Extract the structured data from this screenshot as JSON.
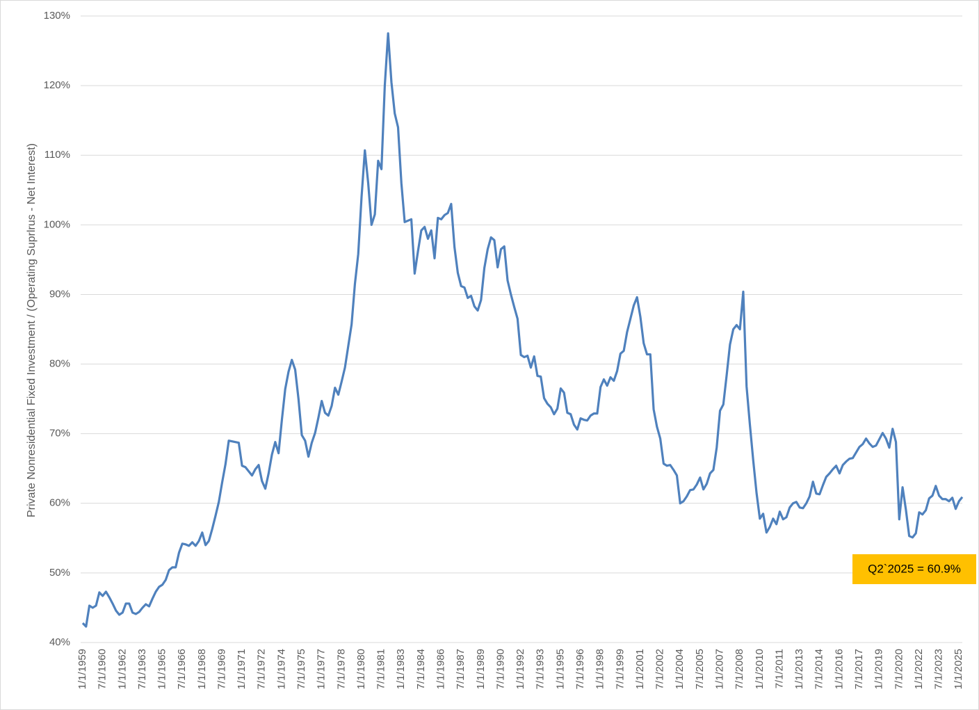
{
  "chart_data": {
    "type": "line",
    "y_label": "Private Nonresidential Fixed Investment / (Operating Suprlrus - Net Interest)",
    "annotation": "Q2`2025 = 60.9%",
    "annotation_color": "#ffc000",
    "grid": true,
    "ylim": [
      40,
      130
    ],
    "yticks": [
      {
        "value": 40,
        "label": "40%"
      },
      {
        "value": 50,
        "label": "50%"
      },
      {
        "value": 60,
        "label": "60%"
      },
      {
        "value": 70,
        "label": "70%"
      },
      {
        "value": 80,
        "label": "80%"
      },
      {
        "value": 90,
        "label": "90%"
      },
      {
        "value": 100,
        "label": "100%"
      },
      {
        "value": 110,
        "label": "110%"
      },
      {
        "value": 120,
        "label": "120%"
      },
      {
        "value": 130,
        "label": "130%"
      }
    ],
    "categories": [
      "1/1/1959",
      null,
      null,
      null,
      null,
      null,
      "7/1/1960",
      null,
      null,
      null,
      null,
      null,
      "1/1/1962",
      null,
      null,
      null,
      null,
      null,
      "7/1/1963",
      null,
      null,
      null,
      null,
      null,
      "1/1/1965",
      null,
      null,
      null,
      null,
      null,
      "7/1/1966",
      null,
      null,
      null,
      null,
      null,
      "1/1/1968",
      null,
      null,
      null,
      null,
      null,
      "7/1/1969",
      null,
      null,
      null,
      null,
      null,
      "1/1/1971",
      null,
      null,
      null,
      null,
      null,
      "7/1/1972",
      null,
      null,
      null,
      null,
      null,
      "1/1/1974",
      null,
      null,
      null,
      null,
      null,
      "7/1/1975",
      null,
      null,
      null,
      null,
      null,
      "1/1/1977",
      null,
      null,
      null,
      null,
      null,
      "7/1/1978",
      null,
      null,
      null,
      null,
      null,
      "1/1/1980",
      null,
      null,
      null,
      null,
      null,
      "7/1/1981",
      null,
      null,
      null,
      null,
      null,
      "1/1/1983",
      null,
      null,
      null,
      null,
      null,
      "7/1/1984",
      null,
      null,
      null,
      null,
      null,
      "1/1/1986",
      null,
      null,
      null,
      null,
      null,
      "7/1/1987",
      null,
      null,
      null,
      null,
      null,
      "1/1/1989",
      null,
      null,
      null,
      null,
      null,
      "7/1/1990",
      null,
      null,
      null,
      null,
      null,
      "1/1/1992",
      null,
      null,
      null,
      null,
      null,
      "7/1/1993",
      null,
      null,
      null,
      null,
      null,
      "1/1/1995",
      null,
      null,
      null,
      null,
      null,
      "7/1/1996",
      null,
      null,
      null,
      null,
      null,
      "1/1/1998",
      null,
      null,
      null,
      null,
      null,
      "7/1/1999",
      null,
      null,
      null,
      null,
      null,
      "1/1/2001",
      null,
      null,
      null,
      null,
      null,
      "7/1/2002",
      null,
      null,
      null,
      null,
      null,
      "1/1/2004",
      null,
      null,
      null,
      null,
      null,
      "7/1/2005",
      null,
      null,
      null,
      null,
      null,
      "1/1/2007",
      null,
      null,
      null,
      null,
      null,
      "7/1/2008",
      null,
      null,
      null,
      null,
      null,
      "1/1/2010",
      null,
      null,
      null,
      null,
      null,
      "7/1/2011",
      null,
      null,
      null,
      null,
      null,
      "1/1/2013",
      null,
      null,
      null,
      null,
      null,
      "7/1/2014",
      null,
      null,
      null,
      null,
      null,
      "1/1/2016",
      null,
      null,
      null,
      null,
      null,
      "7/1/2017",
      null,
      null,
      null,
      null,
      null,
      "1/1/2019",
      null,
      null,
      null,
      null,
      null,
      "7/1/2020",
      null,
      null,
      null,
      null,
      null,
      "1/1/2022",
      null,
      null,
      null,
      null,
      null,
      "7/1/2023",
      null,
      null,
      null,
      null,
      null,
      "1/1/2025",
      null
    ],
    "series": [
      {
        "color": "#4f81bd",
        "values": [
          42.8,
          42.3,
          45.3,
          45.0,
          45.3,
          47.2,
          46.7,
          47.3,
          46.5,
          45.6,
          44.6,
          44.0,
          44.3,
          45.6,
          45.6,
          44.3,
          44.1,
          44.4,
          45.0,
          45.5,
          45.2,
          46.3,
          47.3,
          48.0,
          48.3,
          49.0,
          50.4,
          50.8,
          50.8,
          52.9,
          54.2,
          54.1,
          53.9,
          54.4,
          53.9,
          54.6,
          55.8,
          54.0,
          54.6,
          56.3,
          58.2,
          60.2,
          63.0,
          65.6,
          69.0,
          68.9,
          68.8,
          68.7,
          65.4,
          65.2,
          64.6,
          64.0,
          64.9,
          65.5,
          63.2,
          62.1,
          64.3,
          67.0,
          68.8,
          67.2,
          72.0,
          76.4,
          78.9,
          80.6,
          79.2,
          75.0,
          69.8,
          69.0,
          66.7,
          68.7,
          70.1,
          72.3,
          74.7,
          73.0,
          72.6,
          74.0,
          76.6,
          75.6,
          77.5,
          79.5,
          82.6,
          85.7,
          91.5,
          95.8,
          104.0,
          110.7,
          106.0,
          100.0,
          101.5,
          109.2,
          108.0,
          120.0,
          127.5,
          120.5,
          116.0,
          114.0,
          106.0,
          100.4,
          100.6,
          100.8,
          93.0,
          96.2,
          99.2,
          99.7,
          98.0,
          99.2,
          95.2,
          101.0,
          100.8,
          101.4,
          101.7,
          103.0,
          96.8,
          93.1,
          91.2,
          91.0,
          89.5,
          89.8,
          88.3,
          87.7,
          89.2,
          93.8,
          96.5,
          98.2,
          97.8,
          93.9,
          96.5,
          96.9,
          92.0,
          90.0,
          88.2,
          86.5,
          81.3,
          81.0,
          81.2,
          79.5,
          81.1,
          78.3,
          78.2,
          75.1,
          74.3,
          73.8,
          72.8,
          73.6,
          76.5,
          75.9,
          73.0,
          72.8,
          71.3,
          70.6,
          72.2,
          72.0,
          71.9,
          72.6,
          72.9,
          72.9,
          76.7,
          77.8,
          76.9,
          78.1,
          77.6,
          79.0,
          81.5,
          81.9,
          84.6,
          86.5,
          88.4,
          89.6,
          86.8,
          83.0,
          81.4,
          81.4,
          73.5,
          71.0,
          69.3,
          65.7,
          65.4,
          65.5,
          64.8,
          64.0,
          60.0,
          60.3,
          61.0,
          61.9,
          62.0,
          62.7,
          63.7,
          62.0,
          62.8,
          64.3,
          64.8,
          68.0,
          73.3,
          74.2,
          78.4,
          82.8,
          85.0,
          85.6,
          85.0,
          90.4,
          76.8,
          71.3,
          66.2,
          61.5,
          57.8,
          58.5,
          55.8,
          56.6,
          57.8,
          57.0,
          58.8,
          57.7,
          58.0,
          59.4,
          60.0,
          60.2,
          59.4,
          59.3,
          60.0,
          61.0,
          63.1,
          61.4,
          61.3,
          62.6,
          63.8,
          64.3,
          64.9,
          65.4,
          64.3,
          65.5,
          66.0,
          66.4,
          66.5,
          67.3,
          68.1,
          68.5,
          69.3,
          68.6,
          68.1,
          68.3,
          69.2,
          70.1,
          69.3,
          68.0,
          70.7,
          68.8,
          57.7,
          62.3,
          59.1,
          55.3,
          55.1,
          55.7,
          58.7,
          58.4,
          59.0,
          60.7,
          61.1,
          62.5,
          61.1,
          60.6,
          60.6,
          60.3,
          60.8,
          59.2,
          60.3,
          60.9
        ]
      }
    ]
  }
}
